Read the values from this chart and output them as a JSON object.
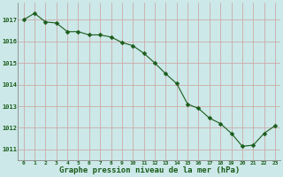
{
  "x": [
    0,
    1,
    2,
    3,
    4,
    5,
    6,
    7,
    8,
    9,
    10,
    11,
    12,
    13,
    14,
    15,
    16,
    17,
    18,
    19,
    20,
    21,
    22,
    23
  ],
  "y": [
    1017.0,
    1017.3,
    1016.9,
    1016.85,
    1016.45,
    1016.45,
    1016.3,
    1016.3,
    1016.2,
    1015.95,
    1015.8,
    1015.45,
    1015.0,
    1014.5,
    1014.05,
    1013.1,
    1012.9,
    1012.45,
    1012.2,
    1011.75,
    1011.15,
    1011.2,
    1011.75,
    1012.1
  ],
  "line_color": "#1a5c1a",
  "marker_color": "#1a5c1a",
  "bg_color": "#cce8e8",
  "grid_color_major": "#b0cccc",
  "grid_color_minor": "#d4e8e8",
  "xlabel": "Graphe pression niveau de la mer (hPa)",
  "xlabel_color": "#1a5c1a",
  "tick_color": "#1a5c1a",
  "ylim": [
    1010.5,
    1017.8
  ],
  "xlim": [
    -0.5,
    23.5
  ],
  "yticks": [
    1011,
    1012,
    1013,
    1014,
    1015,
    1016,
    1017
  ],
  "xticks": [
    0,
    1,
    2,
    3,
    4,
    5,
    6,
    7,
    8,
    9,
    10,
    11,
    12,
    13,
    14,
    15,
    16,
    17,
    18,
    19,
    20,
    21,
    22,
    23
  ],
  "xtick_labels": [
    "0",
    "1",
    "2",
    "3",
    "4",
    "5",
    "6",
    "7",
    "8",
    "9",
    "10",
    "11",
    "12",
    "13",
    "14",
    "15",
    "16",
    "17",
    "18",
    "19",
    "20",
    "21",
    "22",
    "23"
  ]
}
